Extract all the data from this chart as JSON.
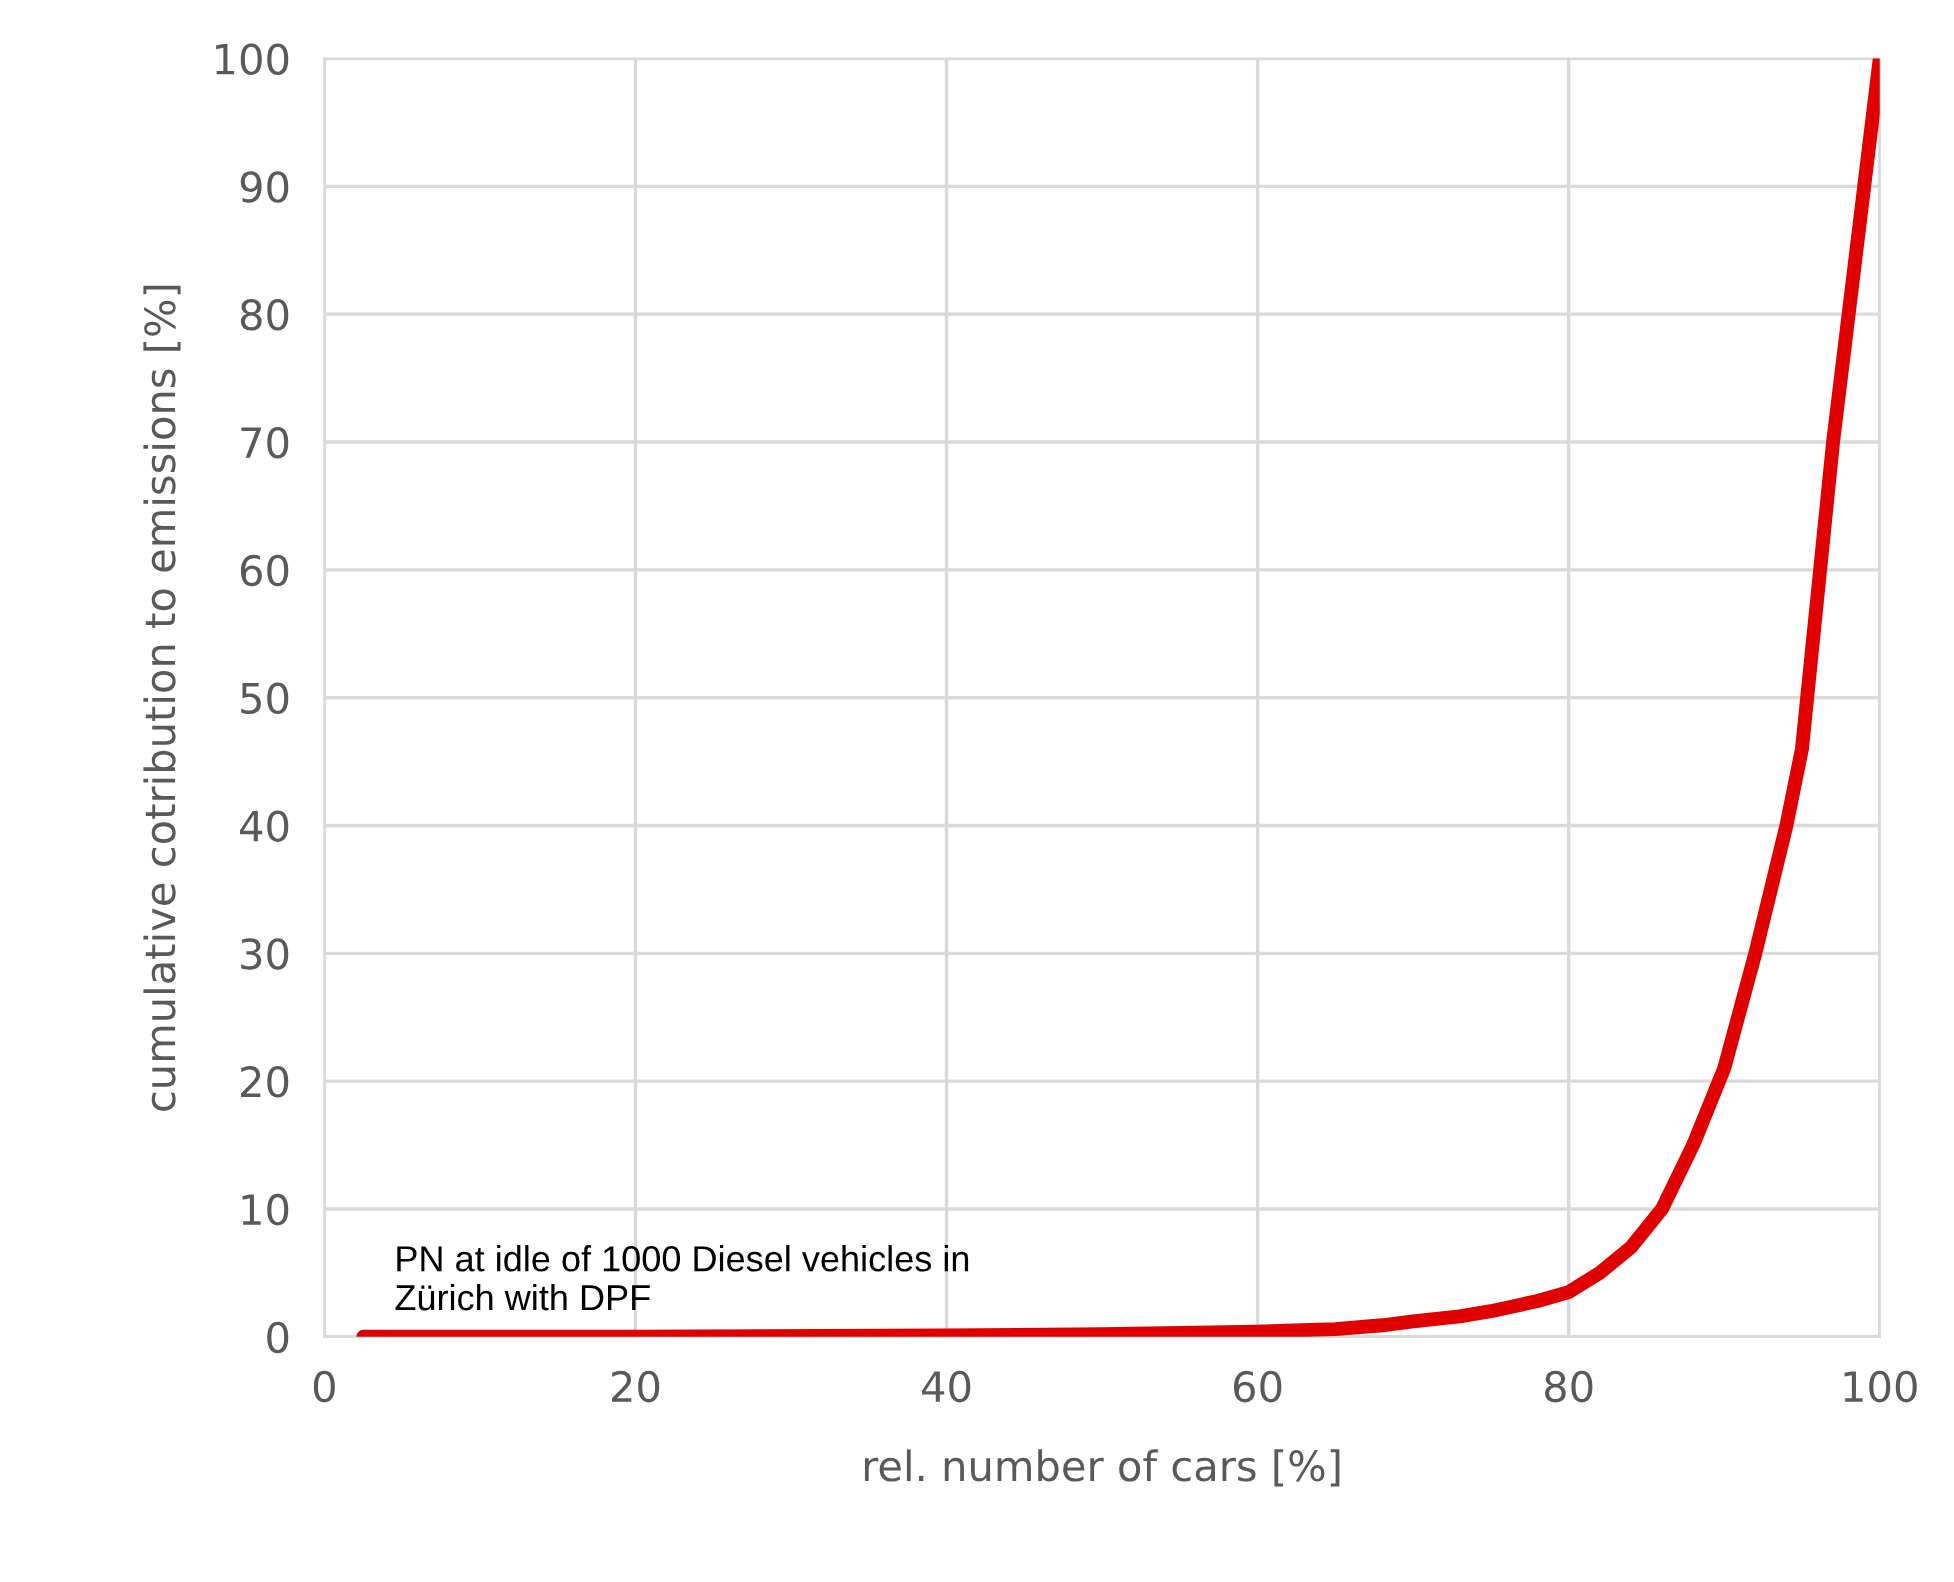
{
  "chart_data": {
    "type": "line",
    "xlabel": "rel. number of cars [%]",
    "ylabel": "cumulative cotribution to emissions [%]",
    "annotations": [
      "PN at idle of 1000 Diesel vehicles in\nZürich with DPF"
    ],
    "series": [
      {
        "color": "#e00000",
        "x": [
          2.5,
          20,
          40,
          50,
          60,
          65,
          68,
          70,
          73,
          75,
          78,
          80,
          82,
          84,
          86,
          88,
          90,
          92,
          94,
          95,
          96,
          97,
          98,
          99,
          100
        ],
        "values": [
          0,
          0,
          0.1,
          0.2,
          0.4,
          0.6,
          0.9,
          1.2,
          1.6,
          2,
          2.8,
          3.5,
          5,
          7,
          10,
          15,
          21,
          30,
          40,
          46,
          58,
          70,
          80,
          90,
          100
        ]
      }
    ],
    "xlim": [
      0,
      100
    ],
    "ylim": [
      0,
      100
    ],
    "xticks": [
      0,
      20,
      40,
      60,
      80,
      100
    ],
    "yticks": [
      0,
      10,
      20,
      30,
      40,
      50,
      60,
      70,
      80,
      90,
      100
    ],
    "grid": true,
    "legend": false,
    "marker": "none",
    "line_style": "solid"
  }
}
